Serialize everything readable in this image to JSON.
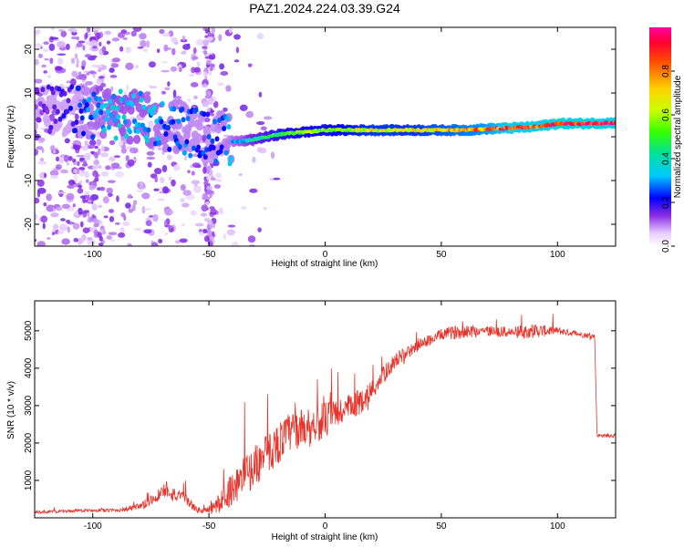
{
  "title": "PAZ1.2024.224.03.39.G24",
  "chart_data": [
    {
      "type": "heatmap",
      "xlabel": "Height of straight line (km)",
      "ylabel": "Frequency (Hz)",
      "xlim": [
        -125,
        125
      ],
      "ylim": [
        -25,
        25
      ],
      "xticks": [
        -100,
        -50,
        0,
        50,
        100
      ],
      "yticks": [
        -20,
        -10,
        0,
        10,
        20
      ],
      "colorbar": {
        "label": "Normalized spectral amplitude",
        "range": [
          0.0,
          1.0
        ],
        "ticks": [
          0.0,
          0.2,
          0.4,
          0.6,
          0.8
        ]
      },
      "ridge": {
        "description_x": [
          -125,
          -110,
          -100,
          -90,
          -80,
          -70,
          -60,
          -50,
          -40,
          -35,
          -30,
          -20,
          -10,
          0,
          10,
          20,
          30,
          40,
          50,
          60,
          70,
          80,
          90,
          100,
          110,
          125
        ],
        "freq_hz": [
          6,
          6,
          5.5,
          5,
          4.5,
          3,
          1.5,
          0,
          -1,
          -1,
          -0.5,
          0.5,
          1,
          1.5,
          1.5,
          1.5,
          1.5,
          1.5,
          1.5,
          1.5,
          1.8,
          2,
          2.3,
          3,
          3,
          3.2
        ],
        "peak_amplitude": [
          0.15,
          0.2,
          0.3,
          0.35,
          0.35,
          0.3,
          0.28,
          0.25,
          0.3,
          0.35,
          0.45,
          0.55,
          0.6,
          0.6,
          0.65,
          0.7,
          0.7,
          0.7,
          0.75,
          0.8,
          0.85,
          0.95,
          0.95,
          1.0,
          1.0,
          1.0
        ]
      }
    },
    {
      "type": "line",
      "xlabel": "Height of straight line (km)",
      "ylabel": "SNR (10 * v/v)",
      "xlim": [
        -125,
        125
      ],
      "ylim": [
        0,
        5800
      ],
      "xticks": [
        -100,
        -50,
        0,
        50,
        100
      ],
      "yticks": [
        1000,
        2000,
        3000,
        4000,
        5000
      ],
      "color": "#e8332a",
      "envelope": {
        "x": [
          -125,
          -110,
          -100,
          -90,
          -80,
          -75,
          -70,
          -68,
          -65,
          -60,
          -55,
          -50,
          -45,
          -40,
          -35,
          -30,
          -25,
          -20,
          -15,
          -10,
          -5,
          0,
          5,
          10,
          15,
          20,
          25,
          30,
          40,
          50,
          60,
          70,
          80,
          90,
          100,
          110,
          116,
          117,
          120,
          125
        ],
        "base": [
          150,
          180,
          200,
          200,
          280,
          450,
          700,
          800,
          600,
          500,
          200,
          200,
          400,
          800,
          1100,
          1400,
          1700,
          2000,
          2300,
          2400,
          2500,
          2600,
          2800,
          2900,
          3100,
          3400,
          3800,
          4200,
          4600,
          4900,
          5000,
          5000,
          4950,
          5000,
          5000,
          4900,
          4850,
          2200,
          2200,
          2200
        ],
        "spread": [
          80,
          80,
          80,
          100,
          200,
          300,
          400,
          500,
          400,
          300,
          150,
          250,
          600,
          900,
          1100,
          1100,
          1100,
          1100,
          1100,
          1000,
          1000,
          1000,
          900,
          800,
          700,
          600,
          500,
          400,
          300,
          300,
          400,
          300,
          300,
          400,
          200,
          150,
          150,
          100,
          100,
          100
        ]
      }
    }
  ],
  "colors": {
    "colorbar_stops": [
      "#e0e0e0",
      "#cc99ff",
      "#7a00ff",
      "#0000ff",
      "#00ccff",
      "#00ff66",
      "#ccff00",
      "#ffcc00",
      "#ff3300",
      "#ff0066"
    ]
  }
}
